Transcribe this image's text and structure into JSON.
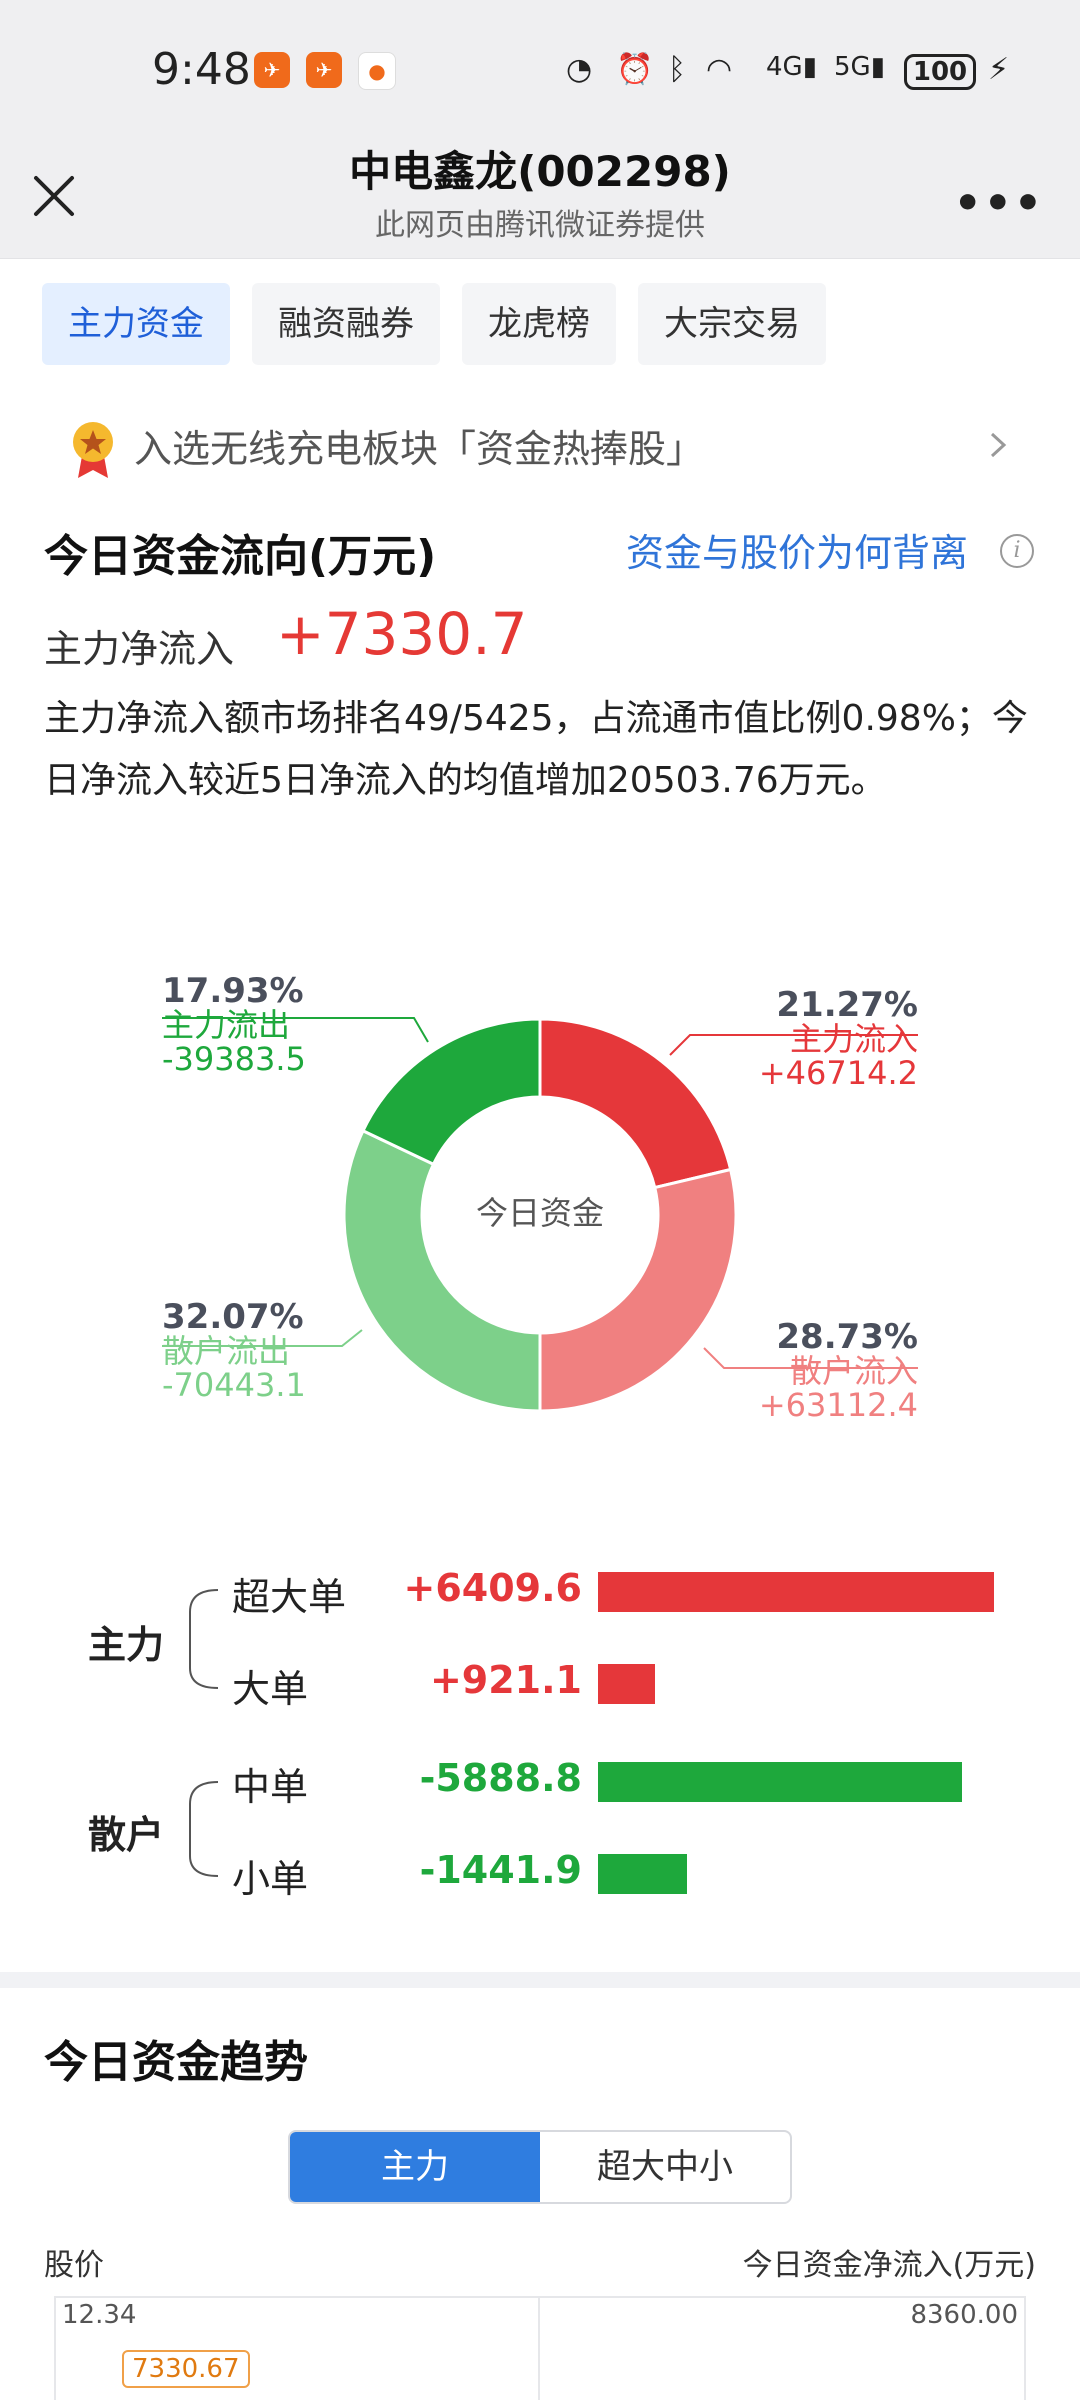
{
  "status_bar": {
    "time": "9:48",
    "battery": "100",
    "icons": [
      "app-notification-icon",
      "app-notification-icon",
      "app-notification-icon",
      "data-speed-icon",
      "alarm-icon",
      "bluetooth-icon",
      "wifi-icon",
      "signal-4g-icon",
      "signal-5g-icon",
      "charging-icon"
    ]
  },
  "header": {
    "title": "中电鑫龙(002298)",
    "subtitle": "此网页由腾讯微证券提供"
  },
  "tabs": [
    {
      "label": "主力资金",
      "active": true
    },
    {
      "label": "融资融券",
      "active": false
    },
    {
      "label": "龙虎榜",
      "active": false
    },
    {
      "label": "大宗交易",
      "active": false
    }
  ],
  "hot_banner": {
    "text": "入选无线充电板块「资金热捧股」"
  },
  "flow_section": {
    "title": "今日资金流向(万元)",
    "link": "资金与股价为何背离",
    "net_label": "主力净流入",
    "net_value": "+7330.7",
    "description": "主力净流入额市场排名49/5425，占流通市值比例0.98%；今日净流入较近5日净流入的均值增加20503.76万元。"
  },
  "chart_data": [
    {
      "type": "pie",
      "center_label": "今日资金",
      "slices": [
        {
          "name": "主力流入",
          "percent": "21.27%",
          "value": "+46714.2",
          "share": 21.27,
          "color": "#e5373a"
        },
        {
          "name": "散户流入",
          "percent": "28.73%",
          "value": "+63112.4",
          "share": 28.73,
          "color": "#f08080"
        },
        {
          "name": "散户流出",
          "percent": "32.07%",
          "value": "-70443.1",
          "share": 32.07,
          "color": "#7dd08a"
        },
        {
          "name": "主力流出",
          "percent": "17.93%",
          "value": "-39383.5",
          "share": 17.93,
          "color": "#1ea83c"
        }
      ]
    },
    {
      "type": "bar",
      "groups": [
        {
          "label": "主力",
          "rows": [
            {
              "label": "超大单",
              "value_text": "+6409.6",
              "value": 6409.6,
              "color": "#e5373a"
            },
            {
              "label": "大单",
              "value_text": "+921.1",
              "value": 921.1,
              "color": "#e5373a"
            }
          ]
        },
        {
          "label": "散户",
          "rows": [
            {
              "label": "中单",
              "value_text": "-5888.8",
              "value": -5888.8,
              "color": "#1ea83c"
            },
            {
              "label": "小单",
              "value_text": "-1441.9",
              "value": -1441.9,
              "color": "#1ea83c"
            }
          ]
        }
      ]
    }
  ],
  "trend_section": {
    "title": "今日资金趋势",
    "segments": [
      {
        "label": "主力",
        "active": true
      },
      {
        "label": "超大中小",
        "active": false
      }
    ],
    "axis_left_label": "股价",
    "axis_right_label": "今日资金净流入(万元)",
    "y_left_top": "12.34",
    "y_right_top": "8360.00",
    "tooltip": "7330.67"
  }
}
